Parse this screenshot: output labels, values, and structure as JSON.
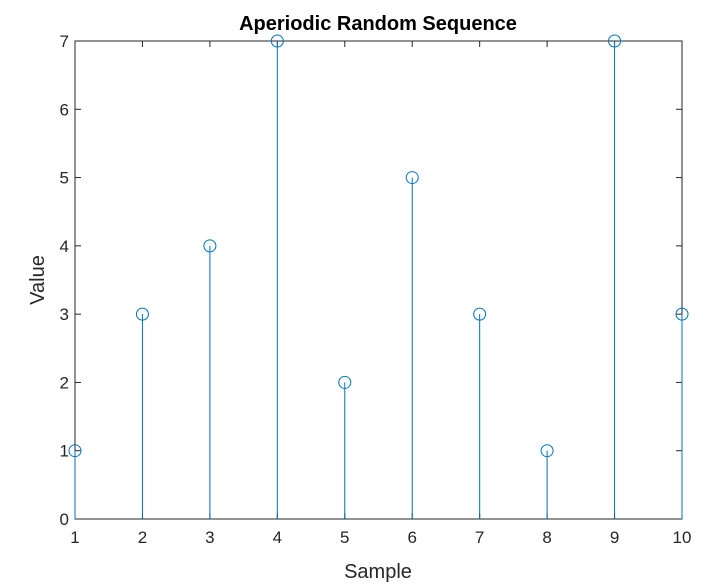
{
  "chart_data": {
    "type": "stem",
    "title": "Aperiodic Random Sequence",
    "xlabel": "Sample",
    "ylabel": "Value",
    "x": [
      1,
      2,
      3,
      4,
      5,
      6,
      7,
      8,
      9,
      10
    ],
    "values": [
      1,
      3,
      4,
      7,
      2,
      5,
      3,
      1,
      7,
      3
    ],
    "xlim": [
      1,
      10
    ],
    "ylim": [
      0,
      7
    ],
    "xticks": [
      "1",
      "2",
      "3",
      "4",
      "5",
      "6",
      "7",
      "8",
      "9",
      "10"
    ],
    "yticks": [
      "0",
      "1",
      "2",
      "3",
      "4",
      "5",
      "6",
      "7"
    ],
    "grid": false,
    "marker": "open-circle",
    "color": "#0072BD"
  }
}
